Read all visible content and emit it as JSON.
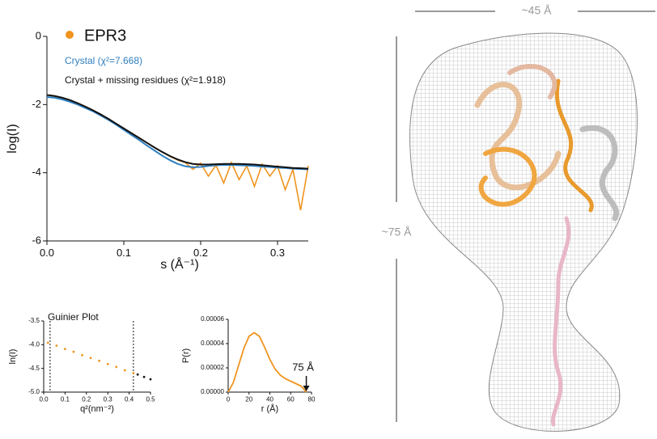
{
  "chart_data": [
    {
      "type": "line",
      "x_label": "s (Å⁻¹)",
      "y_label": "log(I)",
      "xlim": [
        0,
        0.34
      ],
      "ylim": [
        -6,
        0
      ],
      "xticks": [
        {
          "value": 0,
          "label": "0.0"
        },
        0.1,
        0.2,
        0.3
      ],
      "yticks": [
        0,
        -2,
        -4,
        -6
      ],
      "x": [
        0,
        0.01,
        0.02,
        0.03,
        0.04,
        0.05,
        0.06,
        0.07,
        0.08,
        0.09,
        0.1,
        0.11,
        0.12,
        0.13,
        0.14,
        0.15,
        0.16,
        0.17,
        0.18,
        0.19,
        0.2,
        0.21,
        0.22,
        0.23,
        0.24,
        0.25,
        0.26,
        0.27,
        0.28,
        0.29,
        0.3,
        0.31,
        0.32,
        0.33,
        0.34
      ],
      "series": [
        {
          "name": "EPR3",
          "color": "#f0941e",
          "marker": true,
          "values": [
            -1.72,
            -1.74,
            -1.8,
            -1.87,
            -1.96,
            -2.06,
            -2.17,
            -2.29,
            -2.42,
            -2.56,
            -2.7,
            -2.84,
            -2.98,
            -3.12,
            -3.26,
            -3.39,
            -3.52,
            -3.63,
            -3.7,
            -3.9,
            -3.72,
            -4.1,
            -3.78,
            -4.3,
            -3.7,
            -4.2,
            -3.8,
            -4.4,
            -3.75,
            -4.1,
            -3.8,
            -4.5,
            -3.9,
            -5.1,
            -3.8
          ]
        },
        {
          "name": "Crystal (χ²=7.668)",
          "color": "#2f7fc1",
          "values": [
            -1.78,
            -1.8,
            -1.85,
            -1.92,
            -2.0,
            -2.1,
            -2.2,
            -2.32,
            -2.45,
            -2.59,
            -2.74,
            -2.89,
            -3.04,
            -3.2,
            -3.35,
            -3.5,
            -3.63,
            -3.74,
            -3.81,
            -3.84,
            -3.83,
            -3.8,
            -3.78,
            -3.77,
            -3.77,
            -3.78,
            -3.79,
            -3.8,
            -3.82,
            -3.83,
            -3.85,
            -3.86,
            -3.88,
            -3.89,
            -3.9
          ]
        },
        {
          "name": "Crystal + missing residues (χ²=1.918)",
          "color": "#111111",
          "values": [
            -1.72,
            -1.75,
            -1.8,
            -1.87,
            -1.96,
            -2.06,
            -2.17,
            -2.29,
            -2.42,
            -2.56,
            -2.7,
            -2.84,
            -2.98,
            -3.12,
            -3.26,
            -3.39,
            -3.51,
            -3.61,
            -3.69,
            -3.74,
            -3.76,
            -3.76,
            -3.75,
            -3.74,
            -3.74,
            -3.74,
            -3.75,
            -3.76,
            -3.78,
            -3.8,
            -3.82,
            -3.84,
            -3.86,
            -3.87,
            -3.88
          ]
        }
      ]
    },
    {
      "type": "scatter",
      "title": "Guinier Plot",
      "x_label": "q²(nm⁻²)",
      "y_label": "ln(I)",
      "xlim": [
        0,
        0.5
      ],
      "ylim": [
        -5,
        -3.5
      ],
      "xticks": [
        {
          "value": 0,
          "label": "0.0"
        },
        0.1,
        0.2,
        0.3,
        0.4,
        0.5
      ],
      "yticks": [
        -3.5,
        {
          "value": -4,
          "label": "-4.0"
        },
        -4.5,
        {
          "value": -5,
          "label": "-5.0"
        }
      ],
      "vlines": [
        0.03,
        0.42
      ],
      "series": [
        {
          "color": "#f0941e",
          "x": [
            0.02,
            0.06,
            0.1,
            0.14,
            0.18,
            0.22,
            0.26,
            0.3,
            0.34,
            0.38,
            0.42
          ],
          "values": [
            -3.96,
            -4.02,
            -4.09,
            -4.15,
            -4.22,
            -4.28,
            -4.34,
            -4.41,
            -4.47,
            -4.54,
            -4.6
          ]
        },
        {
          "color": "#111111",
          "x": [
            0.44,
            0.47,
            0.5
          ],
          "values": [
            -4.63,
            -4.68,
            -4.73
          ]
        }
      ]
    },
    {
      "type": "line",
      "x_label": "r (Å)",
      "y_label": "P(r)",
      "xlim": [
        0,
        80
      ],
      "ylim": [
        0,
        6e-05
      ],
      "xticks": [
        0,
        20,
        40,
        60,
        80
      ],
      "yticks": [
        {
          "value": 0,
          "label": "0.00000"
        },
        {
          "value": 2e-05,
          "label": "0.00002"
        },
        {
          "value": 4e-05,
          "label": "0.00004"
        },
        {
          "value": 6e-05,
          "label": "0.00006"
        }
      ],
      "x": [
        0,
        5,
        10,
        15,
        20,
        25,
        30,
        35,
        40,
        45,
        50,
        55,
        60,
        65,
        70,
        75
      ],
      "series": [
        {
          "color": "#f0941e",
          "values": [
            0,
            8e-06,
            2.2e-05,
            3.6e-05,
            4.6e-05,
            4.9e-05,
            4.6e-05,
            3.7e-05,
            2.7e-05,
            1.9e-05,
            1.4e-05,
            1.1e-05,
            9e-06,
            7e-06,
            5e-06,
            0
          ]
        }
      ],
      "annotations": [
        {
          "text": "75 Å",
          "x": 75,
          "y": 0
        }
      ]
    }
  ],
  "structure": {
    "width_label": "~45 Å",
    "height_label": "~75 Å"
  }
}
